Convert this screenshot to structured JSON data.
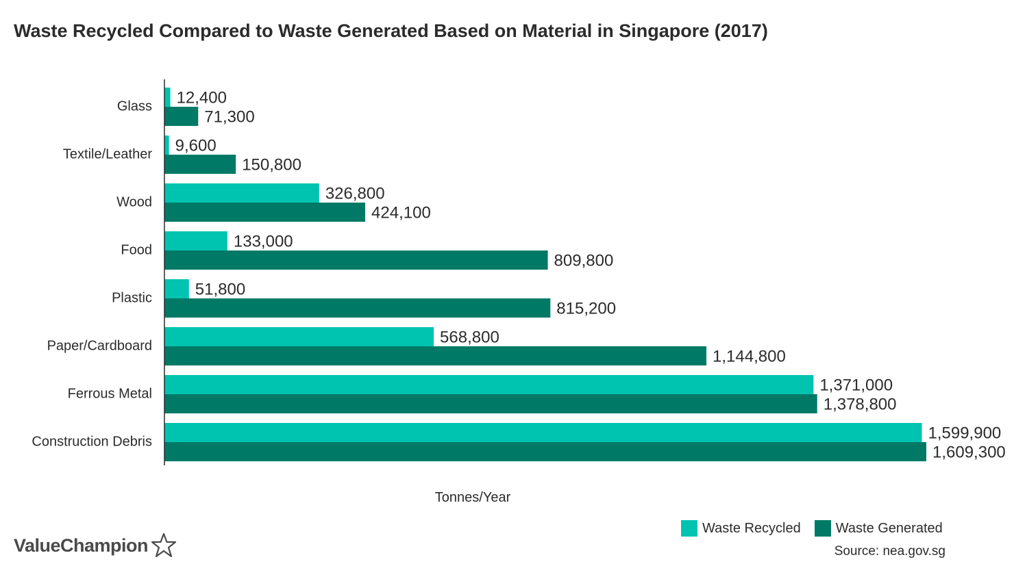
{
  "title": "Waste Recycled Compared to Waste Generated Based on Material in Singapore (2017)",
  "colors": {
    "recycled": "#00c3b0",
    "generated": "#007a66",
    "axis": "#2b2b2b"
  },
  "legend": {
    "recycled_label": "Waste Recycled",
    "generated_label": "Waste Generated"
  },
  "source": "Source: nea.gov.sg",
  "brand": {
    "name": "ValueChampion",
    "icon": "star-outline-icon"
  },
  "chart_data": {
    "type": "bar",
    "orientation": "horizontal",
    "title": "Waste Recycled Compared to Waste Generated Based on Material in Singapore (2017)",
    "xlabel": "Tonnes/Year",
    "ylabel": "",
    "xlim": [
      0,
      1609300
    ],
    "grid": false,
    "legend_position": "bottom-right",
    "categories": [
      "Glass",
      "Textile/Leather",
      "Wood",
      "Food",
      "Plastic",
      "Paper/Cardboard",
      "Ferrous Metal",
      "Construction Debris"
    ],
    "series": [
      {
        "name": "Waste Recycled",
        "values": [
          12400,
          9600,
          326800,
          133000,
          51800,
          568800,
          1371000,
          1599900
        ],
        "labels": [
          "12,400",
          "9,600",
          "326,800",
          "133,000",
          "51,800",
          "568,800",
          "1,371,000",
          "1,599,900"
        ]
      },
      {
        "name": "Waste Generated",
        "values": [
          71300,
          150800,
          424100,
          809800,
          815200,
          1144800,
          1378800,
          1609300
        ],
        "labels": [
          "71,300",
          "150,800",
          "424,100",
          "809,800",
          "815,200",
          "1,144,800",
          "1,378,800",
          "1,609,300"
        ]
      }
    ]
  }
}
